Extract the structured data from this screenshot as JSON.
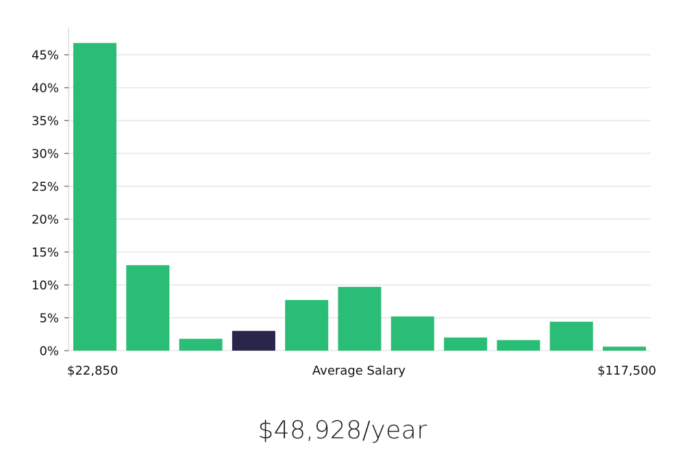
{
  "chart_data": {
    "type": "bar",
    "title": "",
    "ylabel": "",
    "xlabel": "Average Salary",
    "ylim": [
      0,
      49
    ],
    "yticks": [
      0,
      5,
      10,
      15,
      20,
      25,
      30,
      35,
      40,
      45
    ],
    "ytick_labels": [
      "0%",
      "5%",
      "10%",
      "15%",
      "20%",
      "25%",
      "30%",
      "35%",
      "40%",
      "45%"
    ],
    "x_min_label": "$22,850",
    "x_max_label": "$117,500",
    "values": [
      46.8,
      13.0,
      1.8,
      3.0,
      7.7,
      9.7,
      5.2,
      2.0,
      1.6,
      4.4,
      0.6
    ],
    "highlight_index": 3,
    "grid": true,
    "colors": {
      "bar": "#2abd76",
      "highlight": "#2a254a",
      "grid": "#e6e6e6",
      "axis": "#cccccc"
    }
  },
  "summary": {
    "salary_text": "$48,928/year"
  }
}
